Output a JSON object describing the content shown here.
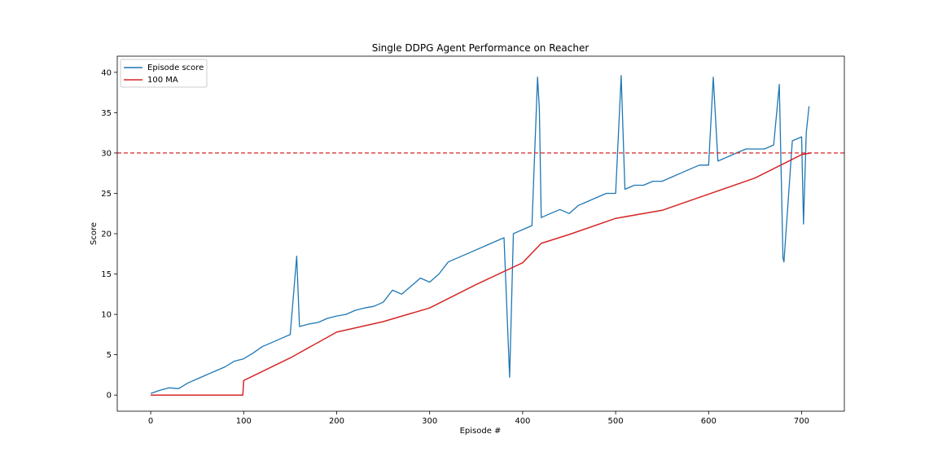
{
  "chart_data": {
    "type": "line",
    "title": "Single DDPG Agent Performance on Reacher",
    "xlabel": "Episode #",
    "ylabel": "Score",
    "xlim": [
      -36,
      746
    ],
    "ylim": [
      -2,
      42
    ],
    "xticks": [
      0,
      100,
      200,
      300,
      400,
      500,
      600,
      700
    ],
    "yticks": [
      0,
      5,
      10,
      15,
      20,
      25,
      30,
      35,
      40
    ],
    "grid": false,
    "legend_position": "top-left",
    "threshold": {
      "y": 30,
      "color": "#d62728",
      "style": "dashed"
    },
    "series": [
      {
        "name": "Episode score",
        "color": "#1f77b4",
        "x": [
          0,
          10,
          20,
          30,
          40,
          50,
          60,
          70,
          80,
          90,
          100,
          110,
          120,
          130,
          140,
          150,
          157,
          160,
          170,
          180,
          190,
          200,
          210,
          220,
          230,
          240,
          250,
          260,
          270,
          280,
          290,
          300,
          310,
          320,
          330,
          340,
          350,
          360,
          370,
          380,
          386,
          390,
          400,
          410,
          416,
          418,
          420,
          430,
          440,
          450,
          460,
          470,
          480,
          490,
          500,
          506,
          510,
          520,
          530,
          540,
          550,
          560,
          570,
          580,
          590,
          600,
          605,
          610,
          620,
          630,
          640,
          650,
          660,
          670,
          676,
          680,
          681,
          690,
          700,
          702,
          705,
          708
        ],
        "values": [
          0.2,
          0.6,
          0.9,
          0.8,
          1.5,
          2.0,
          2.5,
          3.0,
          3.5,
          4.2,
          4.5,
          5.2,
          6.0,
          6.5,
          7.0,
          7.5,
          17.2,
          8.5,
          8.8,
          9.0,
          9.5,
          9.8,
          10.0,
          10.5,
          10.8,
          11.0,
          11.5,
          13.0,
          12.5,
          13.5,
          14.5,
          14.0,
          15.0,
          16.5,
          17.0,
          17.5,
          18.0,
          18.5,
          19.0,
          19.5,
          2.2,
          20.0,
          20.5,
          21.0,
          39.4,
          35.5,
          22.0,
          22.5,
          23.0,
          22.5,
          23.5,
          24.0,
          24.5,
          25.0,
          25.0,
          39.6,
          25.5,
          26.0,
          26.0,
          26.5,
          26.5,
          27.0,
          27.5,
          28.0,
          28.5,
          28.5,
          39.4,
          29.0,
          29.5,
          30.0,
          30.5,
          30.5,
          30.5,
          31.0,
          38.5,
          17.0,
          16.5,
          31.5,
          32.0,
          21.2,
          32.5,
          35.8
        ]
      },
      {
        "name": "100 MA",
        "color": "#d62728",
        "x": [
          0,
          99,
          100,
          150,
          200,
          250,
          300,
          350,
          400,
          420,
          450,
          500,
          550,
          600,
          650,
          700,
          710
        ],
        "values": [
          0.0,
          0.0,
          1.8,
          4.6,
          7.8,
          9.1,
          10.8,
          13.7,
          16.4,
          18.8,
          19.9,
          21.9,
          22.9,
          24.9,
          26.9,
          29.8,
          30.0
        ]
      }
    ]
  }
}
